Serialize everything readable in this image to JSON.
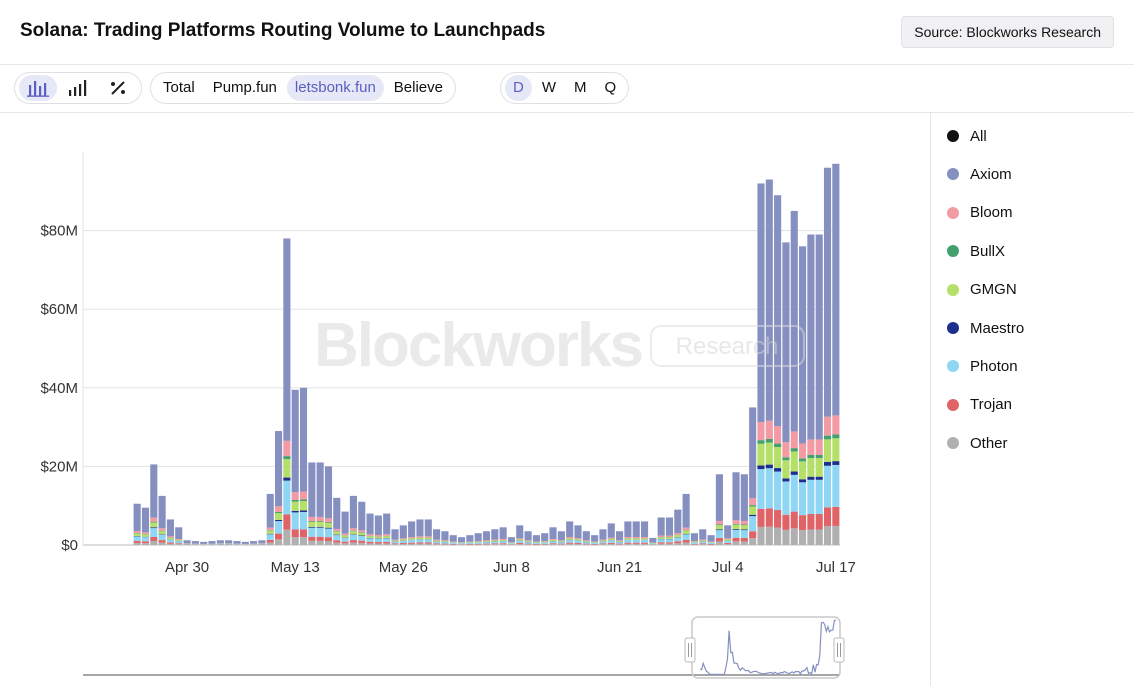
{
  "header": {
    "title": "Solana: Trading Platforms Routing Volume to Launchpads",
    "source": "Source: Blockworks Research"
  },
  "toolbar": {
    "chart_type_icons": [
      "bar-chart-icon",
      "column-chart-icon",
      "percent-icon"
    ],
    "filters": [
      "Total",
      "Pump.fun",
      "letsbonk.fun",
      "Believe"
    ],
    "active_filter": "letsbonk.fun",
    "periods": [
      "D",
      "W",
      "M",
      "Q"
    ],
    "active_period": "D"
  },
  "watermark": {
    "brand": "Blockworks",
    "sub": "Research"
  },
  "colors": {
    "Axiom": "#8590c0",
    "Bloom": "#f29ba4",
    "BullX": "#45a06f",
    "GMGN": "#b4e06a",
    "Maestro": "#1c2f8e",
    "Photon": "#8fd6f4",
    "Trojan": "#e06467",
    "Other": "#b0b0b0",
    "All": "#111111"
  },
  "legend": [
    "All",
    "Axiom",
    "Bloom",
    "BullX",
    "GMGN",
    "Maestro",
    "Photon",
    "Trojan",
    "Other"
  ],
  "chart_data": {
    "type": "bar",
    "stacked": true,
    "y_ticks": [
      "$0",
      "$20M",
      "$40M",
      "$60M",
      "$80M"
    ],
    "y_tick_values": [
      0,
      20,
      40,
      60,
      80
    ],
    "ylim": [
      0,
      100
    ],
    "y_unit": "$M",
    "x_tick_labels": [
      "Apr 30",
      "May 13",
      "May 26",
      "Jun 8",
      "Jun 21",
      "Jul 4",
      "Jul 17"
    ],
    "x_tick_index": [
      6,
      19,
      32,
      45,
      58,
      71,
      84
    ],
    "x_start": "Apr 24",
    "x_end": "Jul 17",
    "series_names": [
      "Other",
      "Trojan",
      "Photon",
      "Maestro",
      "GMGN",
      "BullX",
      "Bloom",
      "Axiom"
    ],
    "totals": [
      10.5,
      9.5,
      20.5,
      12.5,
      6.5,
      4.5,
      1.2,
      1.0,
      0.8,
      1.0,
      1.2,
      1.2,
      1.0,
      0.8,
      1.0,
      1.2,
      13,
      29,
      78,
      39.5,
      40,
      21,
      21,
      20,
      12,
      8.5,
      12.5,
      11,
      8,
      7.5,
      8,
      4,
      5,
      6,
      6.5,
      6.5,
      4,
      3.5,
      2.5,
      2,
      2.5,
      3,
      3.5,
      4,
      4.5,
      2,
      5,
      3.5,
      2.5,
      3,
      4.5,
      3.5,
      6,
      5,
      3.5,
      2.5,
      4,
      5.5,
      3.5,
      6,
      6,
      6,
      1.8,
      7,
      7,
      9,
      13,
      3,
      4,
      2.5,
      18,
      5,
      18.5,
      18,
      35,
      92,
      93,
      89,
      77,
      85,
      76,
      79,
      79,
      96,
      97
    ],
    "composition_pct": {
      "Other": 5,
      "Trojan": 5,
      "Photon": 11,
      "Maestro": 1,
      "GMGN": 6,
      "BullX": 1,
      "Bloom": 5,
      "Axiom": 66
    }
  }
}
